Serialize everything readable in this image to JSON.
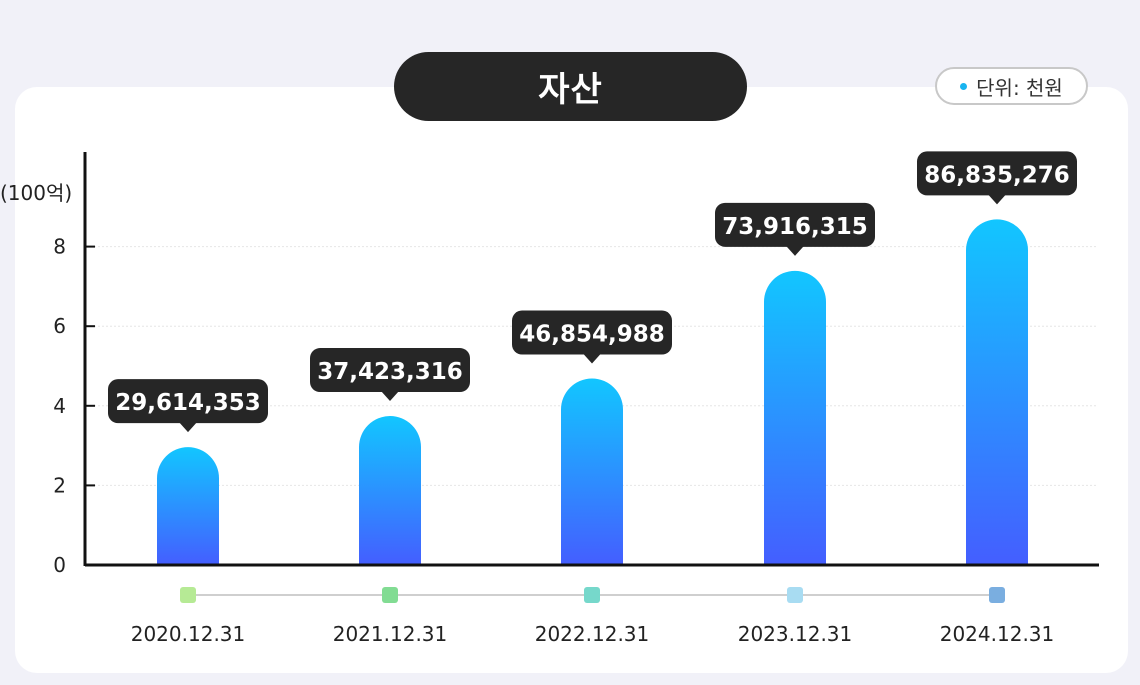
{
  "title": "자산",
  "unit_badge": {
    "label": "단위: 천원",
    "dot_color": "#18b4f0"
  },
  "chart_data": {
    "type": "bar",
    "ylabel": "(100억)",
    "categories": [
      "2020.12.31",
      "2021.12.31",
      "2022.12.31",
      "2023.12.31",
      "2024.12.31"
    ],
    "values": [
      29614353,
      37423316,
      46854988,
      73916315,
      86835276
    ],
    "value_labels": [
      "29,614,353",
      "37,423,316",
      "46,854,988",
      "73,916,315",
      "86,835,276"
    ],
    "y_ticks": [
      0,
      2,
      4,
      6,
      8
    ],
    "ylim": [
      0,
      10
    ],
    "y_scale": 10000000,
    "grid": true,
    "marker_colors": [
      "#b6ea95",
      "#82dc93",
      "#76d8cb",
      "#a8dcf2",
      "#7aaee0"
    ],
    "bar_gradient": [
      "#12c6ff",
      "#445eff"
    ]
  }
}
